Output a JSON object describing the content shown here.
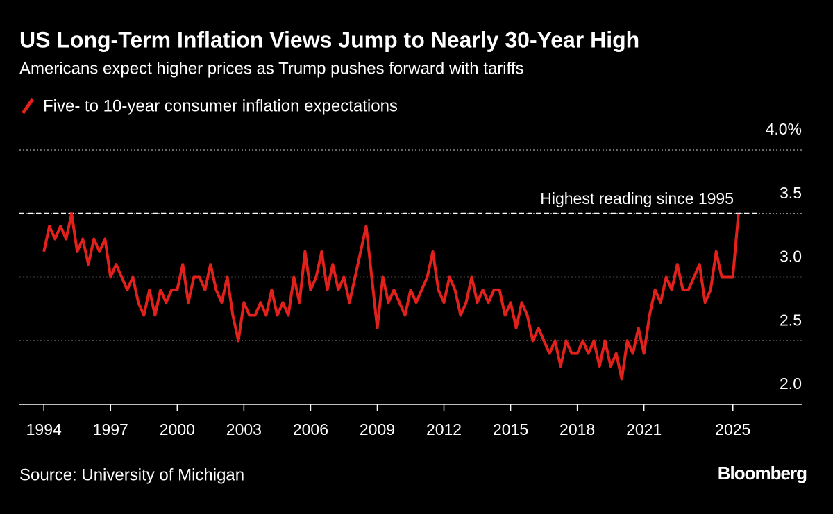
{
  "chart_data": {
    "type": "line",
    "title": "US Long-Term Inflation Views Jump to Nearly 30-Year High",
    "subtitle": "Americans expect higher prices as Trump pushes forward with tariffs",
    "source": "Source: University of Michigan",
    "brand": "Bloomberg",
    "annotation": {
      "text": "Highest reading since 1995",
      "value": 3.5
    },
    "x": [
      1994,
      1994.25,
      1994.5,
      1994.75,
      1995,
      1995.25,
      1995.5,
      1995.75,
      1996,
      1996.25,
      1996.5,
      1996.75,
      1997,
      1997.25,
      1997.5,
      1997.75,
      1998,
      1998.25,
      1998.5,
      1998.75,
      1999,
      1999.25,
      1999.5,
      1999.75,
      2000,
      2000.25,
      2000.5,
      2000.75,
      2001,
      2001.25,
      2001.5,
      2001.75,
      2002,
      2002.25,
      2002.5,
      2002.75,
      2003,
      2003.25,
      2003.5,
      2003.75,
      2004,
      2004.25,
      2004.5,
      2004.75,
      2005,
      2005.25,
      2005.5,
      2005.75,
      2006,
      2006.25,
      2006.5,
      2006.75,
      2007,
      2007.25,
      2007.5,
      2007.75,
      2008,
      2008.25,
      2008.5,
      2008.75,
      2009,
      2009.25,
      2009.5,
      2009.75,
      2010,
      2010.25,
      2010.5,
      2010.75,
      2011,
      2011.25,
      2011.5,
      2011.75,
      2012,
      2012.25,
      2012.5,
      2012.75,
      2013,
      2013.25,
      2013.5,
      2013.75,
      2014,
      2014.25,
      2014.5,
      2014.75,
      2015,
      2015.25,
      2015.5,
      2015.75,
      2016,
      2016.25,
      2016.5,
      2016.75,
      2017,
      2017.25,
      2017.5,
      2017.75,
      2018,
      2018.25,
      2018.5,
      2018.75,
      2019,
      2019.25,
      2019.5,
      2019.75,
      2020,
      2020.25,
      2020.5,
      2020.75,
      2021,
      2021.25,
      2021.5,
      2021.75,
      2022,
      2022.25,
      2022.5,
      2022.75,
      2023,
      2023.25,
      2023.5,
      2023.75,
      2024,
      2024.25,
      2024.5,
      2024.75,
      2025,
      2025.25
    ],
    "series": [
      {
        "name": "Five- to 10-year consumer inflation expectations",
        "color": "#e3211c",
        "values": [
          3.2,
          3.4,
          3.3,
          3.4,
          3.3,
          3.5,
          3.2,
          3.3,
          3.1,
          3.3,
          3.2,
          3.3,
          3.0,
          3.1,
          3.0,
          2.9,
          3.0,
          2.8,
          2.7,
          2.9,
          2.7,
          2.9,
          2.8,
          2.9,
          2.9,
          3.1,
          2.8,
          3.0,
          3.0,
          2.9,
          3.1,
          2.9,
          2.8,
          3.0,
          2.7,
          2.5,
          2.8,
          2.7,
          2.7,
          2.8,
          2.7,
          2.9,
          2.7,
          2.8,
          2.7,
          3.0,
          2.8,
          3.2,
          2.9,
          3.0,
          3.2,
          2.9,
          3.1,
          2.9,
          3.0,
          2.8,
          3.0,
          3.2,
          3.4,
          3.0,
          2.6,
          3.0,
          2.8,
          2.9,
          2.8,
          2.7,
          2.9,
          2.8,
          2.9,
          3.0,
          3.2,
          2.9,
          2.8,
          3.0,
          2.9,
          2.7,
          2.8,
          3.0,
          2.8,
          2.9,
          2.8,
          2.9,
          2.9,
          2.7,
          2.8,
          2.6,
          2.8,
          2.7,
          2.5,
          2.6,
          2.5,
          2.4,
          2.5,
          2.3,
          2.5,
          2.4,
          2.4,
          2.5,
          2.4,
          2.5,
          2.3,
          2.5,
          2.3,
          2.4,
          2.2,
          2.5,
          2.4,
          2.6,
          2.4,
          2.7,
          2.9,
          2.8,
          3.0,
          2.9,
          3.1,
          2.9,
          2.9,
          3.0,
          3.1,
          2.8,
          2.9,
          3.2,
          3.0,
          3.0,
          3.0,
          3.5
        ]
      }
    ],
    "xlim": [
      1992.9,
      2028.1
    ],
    "xticks": [
      1994,
      1997,
      2000,
      2003,
      2006,
      2009,
      2012,
      2015,
      2018,
      2021,
      2025
    ],
    "ylim": [
      2.0,
      4.0
    ],
    "yticks": [
      {
        "value": 2.0,
        "label": "2.0"
      },
      2.5,
      {
        "value": 3.0,
        "label": "3.0"
      },
      3.5,
      {
        "value": 4.0,
        "label": "4.0%"
      }
    ],
    "grid": true
  }
}
